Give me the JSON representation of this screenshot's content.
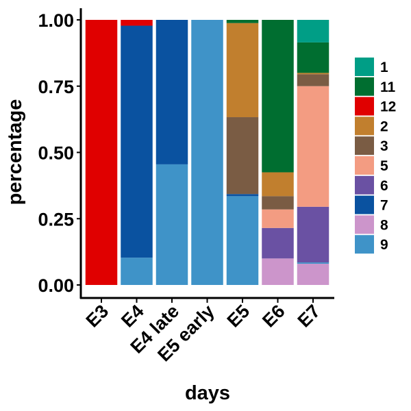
{
  "chart_data": {
    "type": "bar",
    "stacked": true,
    "xlabel": "days",
    "ylabel": "percentage",
    "ylim": [
      0,
      1
    ],
    "y_ticks": [
      "0.00",
      "0.25",
      "0.50",
      "0.75",
      "1.00"
    ],
    "categories": [
      "E3",
      "E4",
      "E4 late",
      "E5 early",
      "E5",
      "E6",
      "E7"
    ],
    "legend_position": "right",
    "stack_order_bottom_to_top": [
      "8",
      "9",
      "6",
      "7",
      "5",
      "3",
      "2",
      "12",
      "11",
      "1"
    ],
    "legend_order": [
      "1",
      "11",
      "12",
      "2",
      "3",
      "5",
      "6",
      "7",
      "8",
      "9"
    ],
    "series": [
      {
        "name": "1",
        "color": "#009E86",
        "values": [
          0,
          0,
          0,
          0,
          0,
          0,
          0.085
        ]
      },
      {
        "name": "11",
        "color": "#006E30",
        "values": [
          0,
          0,
          0,
          0,
          0.012,
          0.575,
          0.115
        ]
      },
      {
        "name": "12",
        "color": "#E00000",
        "values": [
          1.0,
          0.022,
          0,
          0,
          0,
          0,
          0
        ]
      },
      {
        "name": "2",
        "color": "#C17F2E",
        "values": [
          0,
          0,
          0,
          0,
          0.355,
          0.09,
          0.005
        ]
      },
      {
        "name": "3",
        "color": "#7A5C44",
        "values": [
          0,
          0,
          0,
          0,
          0.29,
          0.05,
          0.045
        ]
      },
      {
        "name": "5",
        "color": "#F39C82",
        "values": [
          0,
          0,
          0,
          0,
          0,
          0.07,
          0.455
        ]
      },
      {
        "name": "6",
        "color": "#6A51A3",
        "values": [
          0,
          0,
          0,
          0,
          0,
          0.115,
          0.21
        ]
      },
      {
        "name": "7",
        "color": "#0A52A0",
        "values": [
          0,
          0.875,
          0.545,
          0,
          0.008,
          0,
          0
        ]
      },
      {
        "name": "8",
        "color": "#CC95CB",
        "values": [
          0,
          0,
          0,
          0,
          0,
          0.1,
          0.08
        ]
      },
      {
        "name": "9",
        "color": "#3F93C8",
        "values": [
          0,
          0.103,
          0.455,
          1.0,
          0.335,
          0,
          0.005
        ]
      }
    ]
  }
}
